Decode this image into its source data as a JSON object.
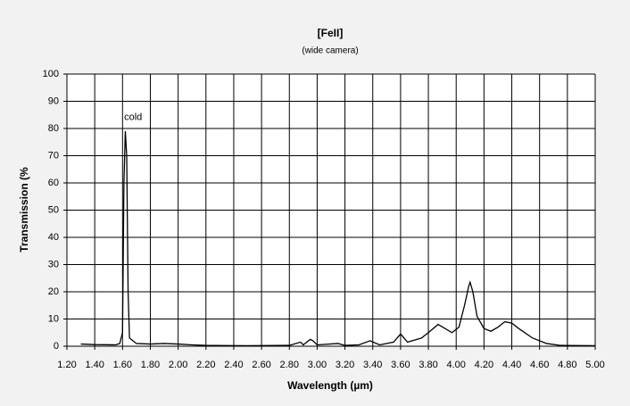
{
  "chart_data": {
    "type": "line",
    "title": "[FeII]",
    "subtitle": "(wide camera)",
    "x_label": "Wavelength (µm)",
    "y_label": "Transmission (%",
    "annotation": {
      "text": "cold",
      "x": 1.65,
      "y": 84
    },
    "grid": true,
    "xlim": [
      1.2,
      5.0
    ],
    "ylim": [
      0,
      100
    ],
    "xticks": [
      {
        "value": 1.2,
        "label": "1.20"
      },
      {
        "value": 1.4,
        "label": "1.40"
      },
      {
        "value": 1.6,
        "label": "1.60"
      },
      {
        "value": 1.8,
        "label": "1.80"
      },
      {
        "value": 2.0,
        "label": "2.00"
      },
      {
        "value": 2.2,
        "label": "2.20"
      },
      {
        "value": 2.4,
        "label": "2.40"
      },
      {
        "value": 2.6,
        "label": "2.60"
      },
      {
        "value": 2.8,
        "label": "2.80"
      },
      {
        "value": 3.0,
        "label": "3.00"
      },
      {
        "value": 3.2,
        "label": "3.20"
      },
      {
        "value": 3.4,
        "label": "3.40"
      },
      {
        "value": 3.6,
        "label": "3.60"
      },
      {
        "value": 3.8,
        "label": "3.80"
      },
      {
        "value": 4.0,
        "label": "4.00"
      },
      {
        "value": 4.2,
        "label": "4.20"
      },
      {
        "value": 4.4,
        "label": "4.40"
      },
      {
        "value": 4.6,
        "label": "4.60"
      },
      {
        "value": 4.8,
        "label": "4.80"
      },
      {
        "value": 5.0,
        "label": "5.00"
      }
    ],
    "yticks": [
      0,
      10,
      20,
      30,
      40,
      50,
      60,
      70,
      80,
      90,
      100
    ],
    "x": [
      1.3,
      1.4,
      1.55,
      1.58,
      1.6,
      1.61,
      1.62,
      1.63,
      1.64,
      1.65,
      1.7,
      1.8,
      1.9,
      2.0,
      2.1,
      2.2,
      2.5,
      2.8,
      2.88,
      2.9,
      2.95,
      2.97,
      3.0,
      3.15,
      3.2,
      3.3,
      3.38,
      3.45,
      3.55,
      3.6,
      3.65,
      3.75,
      3.8,
      3.87,
      3.92,
      3.97,
      4.02,
      4.06,
      4.09,
      4.1,
      4.12,
      4.15,
      4.2,
      4.25,
      4.3,
      4.35,
      4.4,
      4.45,
      4.55,
      4.65,
      4.75,
      5.0
    ],
    "series": [
      {
        "name": "transmission",
        "color": "#000000",
        "values": [
          0.8,
          0.6,
          0.5,
          1,
          5,
          60,
          79,
          70,
          20,
          3,
          1,
          0.8,
          1,
          0.8,
          0.5,
          0.3,
          0.2,
          0.3,
          1.5,
          0.5,
          2.5,
          2,
          0.5,
          1,
          0.3,
          0.5,
          2,
          0.5,
          1.5,
          4.5,
          1.5,
          3,
          5,
          8,
          6.5,
          5,
          7,
          15,
          22,
          23.5,
          20,
          11,
          6.5,
          5.5,
          7,
          9,
          8.5,
          6.5,
          3,
          1,
          0.3,
          0.2
        ]
      }
    ]
  }
}
